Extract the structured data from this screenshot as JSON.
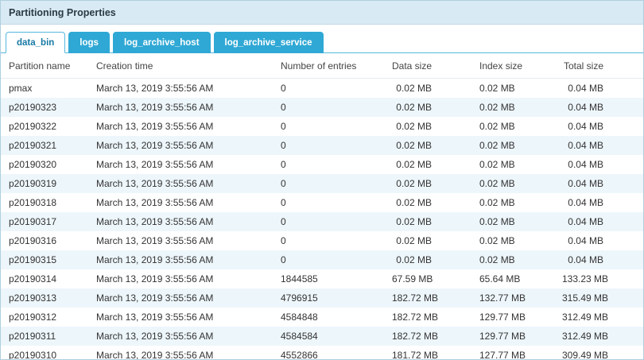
{
  "header": {
    "title": "Partitioning Properties"
  },
  "tabs": [
    {
      "label": "data_bin",
      "active": true
    },
    {
      "label": "logs",
      "active": false
    },
    {
      "label": "log_archive_host",
      "active": false
    },
    {
      "label": "log_archive_service",
      "active": false
    }
  ],
  "table": {
    "columns": [
      "Partition name",
      "Creation time",
      "Number of entries",
      "Data size",
      "Index size",
      "Total size"
    ],
    "rows": [
      [
        "pmax",
        "March 13, 2019 3:55:56 AM",
        "0",
        "0.02 MB",
        "0.02 MB",
        "0.04 MB"
      ],
      [
        "p20190323",
        "March 13, 2019 3:55:56 AM",
        "0",
        "0.02 MB",
        "0.02 MB",
        "0.04 MB"
      ],
      [
        "p20190322",
        "March 13, 2019 3:55:56 AM",
        "0",
        "0.02 MB",
        "0.02 MB",
        "0.04 MB"
      ],
      [
        "p20190321",
        "March 13, 2019 3:55:56 AM",
        "0",
        "0.02 MB",
        "0.02 MB",
        "0.04 MB"
      ],
      [
        "p20190320",
        "March 13, 2019 3:55:56 AM",
        "0",
        "0.02 MB",
        "0.02 MB",
        "0.04 MB"
      ],
      [
        "p20190319",
        "March 13, 2019 3:55:56 AM",
        "0",
        "0.02 MB",
        "0.02 MB",
        "0.04 MB"
      ],
      [
        "p20190318",
        "March 13, 2019 3:55:56 AM",
        "0",
        "0.02 MB",
        "0.02 MB",
        "0.04 MB"
      ],
      [
        "p20190317",
        "March 13, 2019 3:55:56 AM",
        "0",
        "0.02 MB",
        "0.02 MB",
        "0.04 MB"
      ],
      [
        "p20190316",
        "March 13, 2019 3:55:56 AM",
        "0",
        "0.02 MB",
        "0.02 MB",
        "0.04 MB"
      ],
      [
        "p20190315",
        "March 13, 2019 3:55:56 AM",
        "0",
        "0.02 MB",
        "0.02 MB",
        "0.04 MB"
      ],
      [
        "p20190314",
        "March 13, 2019 3:55:56 AM",
        "1844585",
        "67.59 MB",
        "65.64 MB",
        "133.23 MB"
      ],
      [
        "p20190313",
        "March 13, 2019 3:55:56 AM",
        "4796915",
        "182.72 MB",
        "132.77 MB",
        "315.49 MB"
      ],
      [
        "p20190312",
        "March 13, 2019 3:55:56 AM",
        "4584848",
        "182.72 MB",
        "129.77 MB",
        "312.49 MB"
      ],
      [
        "p20190311",
        "March 13, 2019 3:55:56 AM",
        "4584584",
        "182.72 MB",
        "129.77 MB",
        "312.49 MB"
      ],
      [
        "p20190310",
        "March 13, 2019 3:55:56 AM",
        "4552866",
        "181.72 MB",
        "127.77 MB",
        "309.49 MB"
      ]
    ]
  },
  "colors": {
    "accent": "#2fa8d5",
    "title_bar_bg": "#d8eaf3",
    "active_tab_text": "#1779a4",
    "row_stripe": "#edf6fb"
  }
}
